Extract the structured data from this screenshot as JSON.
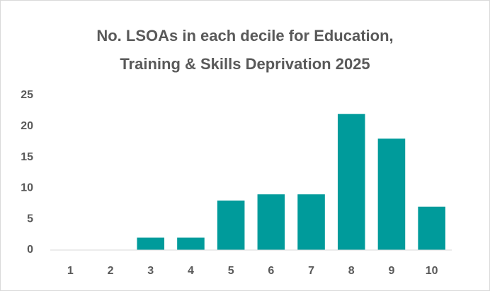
{
  "chart_data": {
    "type": "bar",
    "title": "No. LSOAs in each decile for Education, Training & Skills Deprivation 2025",
    "categories": [
      "1",
      "2",
      "3",
      "4",
      "5",
      "6",
      "7",
      "8",
      "9",
      "10"
    ],
    "values": [
      0,
      0,
      2,
      2,
      8,
      9,
      9,
      22,
      18,
      7
    ],
    "color": "#009b9b",
    "ylim": [
      0,
      25
    ],
    "yticks": [
      0,
      5,
      10,
      15,
      20,
      25
    ],
    "grid": false
  }
}
